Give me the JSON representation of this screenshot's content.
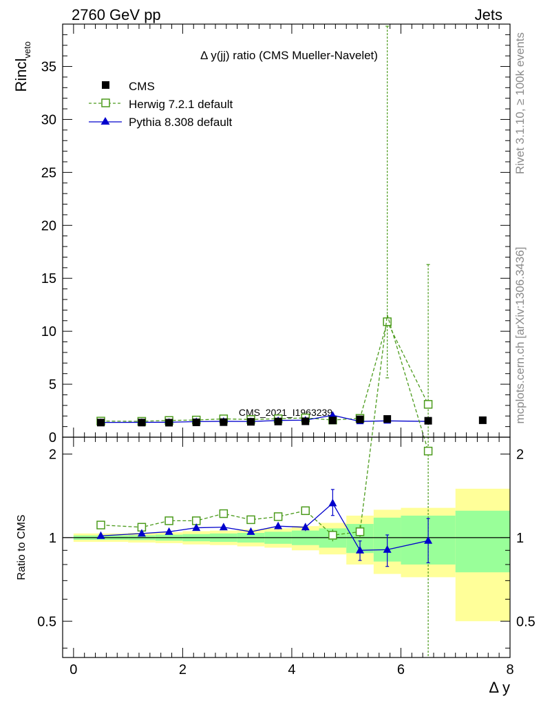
{
  "header": {
    "left": "2760 GeV pp",
    "right": "Jets"
  },
  "side_labels": {
    "rivet": "Rivet 3.1.10, ≥ 100k events",
    "mcplots": "mcplots.cern.ch [arXiv:1306.3436]"
  },
  "chart_data": {
    "type": "scatter",
    "title": "Δ y(jj) ratio (CMS Mueller-Navelet)",
    "watermark": "CMS_2021_I1963239",
    "xlabel": "Δ y",
    "ylabel_main": "Rincl",
    "ylabel_sub": "veto",
    "ylabel_ratio": "Ratio to CMS",
    "xlim": [
      -0.2,
      8.0
    ],
    "ylim_main": [
      0,
      39
    ],
    "ylim_ratio": [
      0.37,
      2.3
    ],
    "ratio_scale": "log",
    "xticks": [
      0,
      2,
      4,
      6,
      8
    ],
    "xtick_labels": [
      "0",
      "2",
      "4",
      "6",
      "8"
    ],
    "yticks_main": [
      0,
      5,
      10,
      15,
      20,
      25,
      30,
      35
    ],
    "ytick_labels_main": [
      "0",
      "5",
      "10",
      "15",
      "20",
      "25",
      "30",
      "35"
    ],
    "yticks_ratio": [
      0.5,
      1,
      2
    ],
    "ytick_labels_ratio": [
      "0.5",
      "1",
      "2"
    ],
    "legend_position": "top-left",
    "legend": [
      {
        "name": "CMS",
        "color": "#000000",
        "marker": "filled-square"
      },
      {
        "name": "Herwig 7.2.1 default",
        "color": "#4a9a1a",
        "marker": "open-square",
        "line": "dashed"
      },
      {
        "name": "Pythia 8.308 default",
        "color": "#0000cc",
        "marker": "filled-triangle",
        "line": "solid"
      }
    ],
    "data": {
      "x": [
        0.5,
        1.25,
        1.75,
        2.25,
        2.75,
        3.25,
        3.75,
        4.25,
        4.75,
        5.25,
        5.75,
        6.5,
        7.5
      ],
      "bins": [
        [
          0.0,
          1.0
        ],
        [
          1.0,
          1.5
        ],
        [
          1.5,
          2.0
        ],
        [
          2.0,
          2.5
        ],
        [
          2.5,
          3.0
        ],
        [
          3.0,
          3.5
        ],
        [
          3.5,
          4.0
        ],
        [
          4.0,
          4.5
        ],
        [
          4.5,
          5.0
        ],
        [
          5.0,
          5.5
        ],
        [
          5.5,
          6.0
        ],
        [
          6.0,
          7.0
        ],
        [
          7.0,
          8.0
        ]
      ],
      "values": [
        1.38,
        1.38,
        1.37,
        1.4,
        1.42,
        1.45,
        1.48,
        1.5,
        1.58,
        1.68,
        1.72,
        1.55,
        1.6
      ],
      "band_inner": [
        0.018,
        0.02,
        0.025,
        0.03,
        0.035,
        0.04,
        0.05,
        0.06,
        0.08,
        0.12,
        0.18,
        0.2,
        0.25
      ],
      "band_outer": [
        0.035,
        0.04,
        0.045,
        0.055,
        0.06,
        0.07,
        0.08,
        0.1,
        0.13,
        0.2,
        0.26,
        0.28,
        0.5
      ]
    },
    "series": [
      {
        "name": "Herwig 7.2.1 default",
        "x": [
          0.5,
          1.25,
          1.75,
          2.25,
          2.75,
          3.25,
          3.75,
          4.25,
          4.75,
          5.25,
          5.75,
          6.5
        ],
        "values": [
          1.52,
          1.5,
          1.58,
          1.62,
          1.73,
          1.67,
          1.74,
          1.82,
          1.62,
          1.78,
          10.9,
          3.1
        ],
        "ratio": [
          1.11,
          1.09,
          1.15,
          1.15,
          1.22,
          1.16,
          1.19,
          1.25,
          1.02,
          1.05,
          6.35,
          2.05
        ],
        "err_low": [
          0.03,
          0.03,
          0.03,
          0.03,
          0.04,
          0.04,
          0.05,
          0.06,
          0.08,
          0.1,
          5.3,
          3.1
        ],
        "err_high": [
          0.03,
          0.03,
          0.03,
          0.03,
          0.04,
          0.04,
          0.05,
          0.06,
          0.08,
          0.1,
          27.9,
          13.2
        ]
      },
      {
        "name": "Pythia 8.308 default",
        "x": [
          0.5,
          1.25,
          1.75,
          2.25,
          2.75,
          3.25,
          3.75,
          4.25,
          4.75,
          5.25,
          5.75,
          6.5
        ],
        "values": [
          1.39,
          1.4,
          1.41,
          1.47,
          1.5,
          1.48,
          1.58,
          1.61,
          2.07,
          1.49,
          1.54,
          1.49
        ],
        "ratio": [
          1.015,
          1.035,
          1.05,
          1.085,
          1.09,
          1.05,
          1.1,
          1.09,
          1.33,
          0.9,
          0.905,
          0.975
        ],
        "err_low": [
          0.01,
          0.01,
          0.01,
          0.02,
          0.03,
          0.03,
          0.04,
          0.05,
          0.2,
          0.12,
          0.2,
          0.25
        ],
        "err_high": [
          0.01,
          0.01,
          0.01,
          0.02,
          0.03,
          0.03,
          0.04,
          0.05,
          0.25,
          0.12,
          0.2,
          0.3
        ]
      }
    ]
  }
}
